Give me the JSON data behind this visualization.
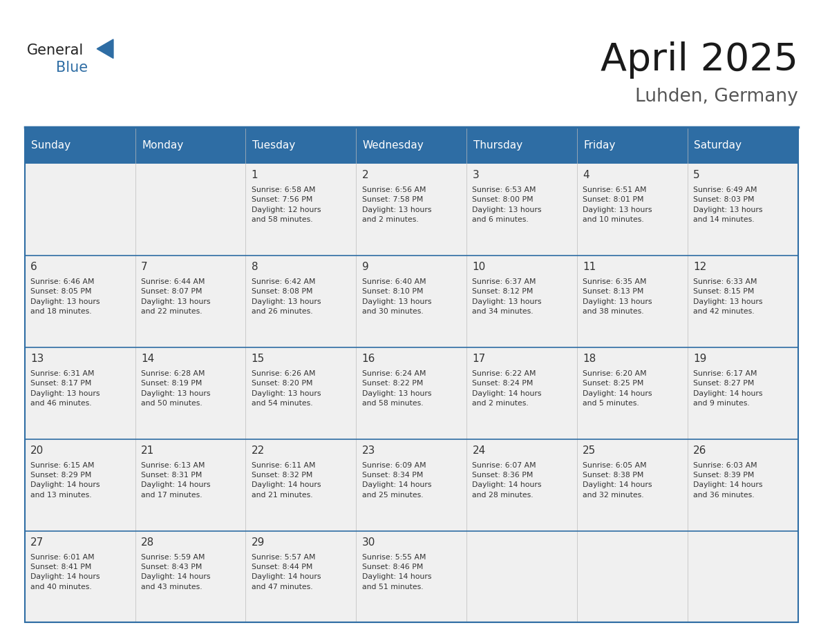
{
  "title": "April 2025",
  "subtitle": "Luhden, Germany",
  "header_bg": "#2E6DA4",
  "header_text_color": "#FFFFFF",
  "cell_bg_light": "#F0F0F0",
  "day_number_color": "#333333",
  "cell_text_color": "#333333",
  "divider_color": "#2E6DA4",
  "days_of_week": [
    "Sunday",
    "Monday",
    "Tuesday",
    "Wednesday",
    "Thursday",
    "Friday",
    "Saturday"
  ],
  "weeks": [
    [
      {
        "day": "",
        "info": ""
      },
      {
        "day": "",
        "info": ""
      },
      {
        "day": "1",
        "info": "Sunrise: 6:58 AM\nSunset: 7:56 PM\nDaylight: 12 hours\nand 58 minutes."
      },
      {
        "day": "2",
        "info": "Sunrise: 6:56 AM\nSunset: 7:58 PM\nDaylight: 13 hours\nand 2 minutes."
      },
      {
        "day": "3",
        "info": "Sunrise: 6:53 AM\nSunset: 8:00 PM\nDaylight: 13 hours\nand 6 minutes."
      },
      {
        "day": "4",
        "info": "Sunrise: 6:51 AM\nSunset: 8:01 PM\nDaylight: 13 hours\nand 10 minutes."
      },
      {
        "day": "5",
        "info": "Sunrise: 6:49 AM\nSunset: 8:03 PM\nDaylight: 13 hours\nand 14 minutes."
      }
    ],
    [
      {
        "day": "6",
        "info": "Sunrise: 6:46 AM\nSunset: 8:05 PM\nDaylight: 13 hours\nand 18 minutes."
      },
      {
        "day": "7",
        "info": "Sunrise: 6:44 AM\nSunset: 8:07 PM\nDaylight: 13 hours\nand 22 minutes."
      },
      {
        "day": "8",
        "info": "Sunrise: 6:42 AM\nSunset: 8:08 PM\nDaylight: 13 hours\nand 26 minutes."
      },
      {
        "day": "9",
        "info": "Sunrise: 6:40 AM\nSunset: 8:10 PM\nDaylight: 13 hours\nand 30 minutes."
      },
      {
        "day": "10",
        "info": "Sunrise: 6:37 AM\nSunset: 8:12 PM\nDaylight: 13 hours\nand 34 minutes."
      },
      {
        "day": "11",
        "info": "Sunrise: 6:35 AM\nSunset: 8:13 PM\nDaylight: 13 hours\nand 38 minutes."
      },
      {
        "day": "12",
        "info": "Sunrise: 6:33 AM\nSunset: 8:15 PM\nDaylight: 13 hours\nand 42 minutes."
      }
    ],
    [
      {
        "day": "13",
        "info": "Sunrise: 6:31 AM\nSunset: 8:17 PM\nDaylight: 13 hours\nand 46 minutes."
      },
      {
        "day": "14",
        "info": "Sunrise: 6:28 AM\nSunset: 8:19 PM\nDaylight: 13 hours\nand 50 minutes."
      },
      {
        "day": "15",
        "info": "Sunrise: 6:26 AM\nSunset: 8:20 PM\nDaylight: 13 hours\nand 54 minutes."
      },
      {
        "day": "16",
        "info": "Sunrise: 6:24 AM\nSunset: 8:22 PM\nDaylight: 13 hours\nand 58 minutes."
      },
      {
        "day": "17",
        "info": "Sunrise: 6:22 AM\nSunset: 8:24 PM\nDaylight: 14 hours\nand 2 minutes."
      },
      {
        "day": "18",
        "info": "Sunrise: 6:20 AM\nSunset: 8:25 PM\nDaylight: 14 hours\nand 5 minutes."
      },
      {
        "day": "19",
        "info": "Sunrise: 6:17 AM\nSunset: 8:27 PM\nDaylight: 14 hours\nand 9 minutes."
      }
    ],
    [
      {
        "day": "20",
        "info": "Sunrise: 6:15 AM\nSunset: 8:29 PM\nDaylight: 14 hours\nand 13 minutes."
      },
      {
        "day": "21",
        "info": "Sunrise: 6:13 AM\nSunset: 8:31 PM\nDaylight: 14 hours\nand 17 minutes."
      },
      {
        "day": "22",
        "info": "Sunrise: 6:11 AM\nSunset: 8:32 PM\nDaylight: 14 hours\nand 21 minutes."
      },
      {
        "day": "23",
        "info": "Sunrise: 6:09 AM\nSunset: 8:34 PM\nDaylight: 14 hours\nand 25 minutes."
      },
      {
        "day": "24",
        "info": "Sunrise: 6:07 AM\nSunset: 8:36 PM\nDaylight: 14 hours\nand 28 minutes."
      },
      {
        "day": "25",
        "info": "Sunrise: 6:05 AM\nSunset: 8:38 PM\nDaylight: 14 hours\nand 32 minutes."
      },
      {
        "day": "26",
        "info": "Sunrise: 6:03 AM\nSunset: 8:39 PM\nDaylight: 14 hours\nand 36 minutes."
      }
    ],
    [
      {
        "day": "27",
        "info": "Sunrise: 6:01 AM\nSunset: 8:41 PM\nDaylight: 14 hours\nand 40 minutes."
      },
      {
        "day": "28",
        "info": "Sunrise: 5:59 AM\nSunset: 8:43 PM\nDaylight: 14 hours\nand 43 minutes."
      },
      {
        "day": "29",
        "info": "Sunrise: 5:57 AM\nSunset: 8:44 PM\nDaylight: 14 hours\nand 47 minutes."
      },
      {
        "day": "30",
        "info": "Sunrise: 5:55 AM\nSunset: 8:46 PM\nDaylight: 14 hours\nand 51 minutes."
      },
      {
        "day": "",
        "info": ""
      },
      {
        "day": "",
        "info": ""
      },
      {
        "day": "",
        "info": ""
      }
    ]
  ],
  "logo_text_general": "General",
  "logo_text_blue": "Blue",
  "logo_color_general": "#222222",
  "logo_color_blue": "#2E6DA4",
  "triangle_color": "#2E6DA4"
}
